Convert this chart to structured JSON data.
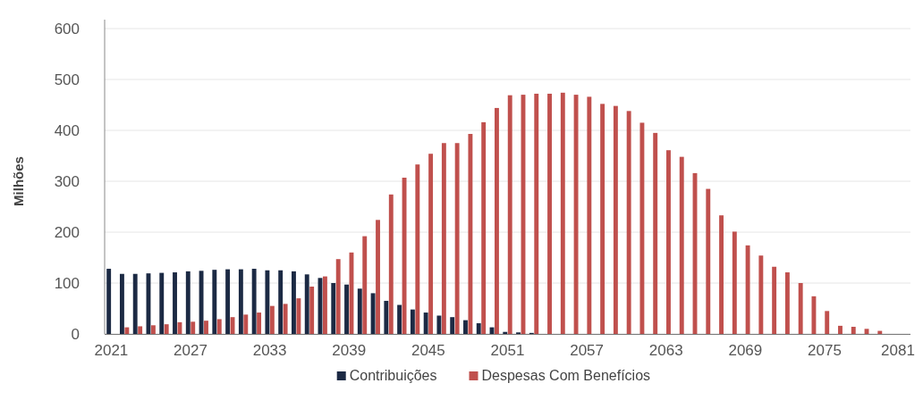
{
  "chart_data": {
    "type": "bar",
    "ylabel": "Milhões",
    "categories": [
      "2021",
      null,
      null,
      null,
      null,
      null,
      "2027",
      null,
      null,
      null,
      null,
      null,
      "2033",
      null,
      null,
      null,
      null,
      null,
      "2039",
      null,
      null,
      null,
      null,
      null,
      "2045",
      null,
      null,
      null,
      null,
      null,
      "2051",
      null,
      null,
      null,
      null,
      null,
      "2057",
      null,
      null,
      null,
      null,
      null,
      "2063",
      null,
      null,
      null,
      null,
      null,
      "2069",
      null,
      null,
      null,
      null,
      null,
      "2075",
      null,
      null,
      null,
      null,
      null,
      "2081"
    ],
    "series": [
      {
        "name": "Contribuições",
        "color": "#1c2a44",
        "values": [
          128,
          118,
          118,
          119,
          120,
          121,
          123,
          124,
          126,
          127,
          127,
          128,
          125,
          125,
          123,
          117,
          110,
          100,
          97,
          89,
          80,
          65,
          57,
          48,
          42,
          36,
          33,
          27,
          21,
          13,
          4,
          3,
          2,
          0,
          0,
          0,
          0,
          0,
          0,
          0,
          0,
          0,
          0,
          0,
          0,
          0,
          0,
          0,
          0,
          0,
          0,
          0,
          0,
          0,
          0,
          0,
          0,
          0,
          0,
          0,
          0
        ]
      },
      {
        "name": "Despesas Com Benefícios",
        "color": "#c0504d",
        "values": [
          0,
          13,
          15,
          17,
          19,
          23,
          24,
          26,
          29,
          33,
          38,
          42,
          55,
          59,
          70,
          93,
          113,
          147,
          160,
          192,
          224,
          274,
          307,
          333,
          354,
          375,
          375,
          393,
          416,
          444,
          469,
          470,
          472,
          472,
          474,
          470,
          466,
          452,
          448,
          438,
          415,
          395,
          361,
          348,
          316,
          285,
          233,
          201,
          174,
          154,
          132,
          121,
          100,
          74,
          45,
          16,
          14,
          10,
          6,
          0,
          0
        ]
      }
    ],
    "ylim": [
      0,
      600
    ],
    "yticks": [
      0,
      100,
      200,
      300,
      400,
      500,
      600
    ],
    "grid": "y",
    "legend": "bottom"
  }
}
